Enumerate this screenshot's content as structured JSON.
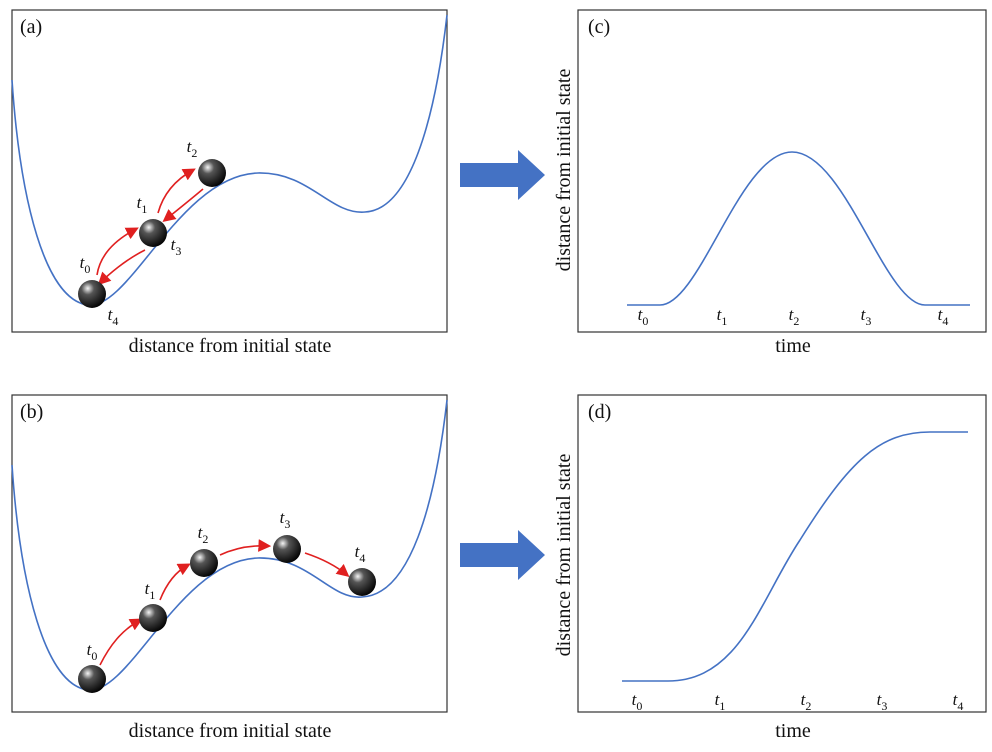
{
  "panels": [
    {
      "label": "(a)",
      "x_label": "distance from initial state",
      "time_labels": [
        {
          "base": "t",
          "sub": "0"
        },
        {
          "base": "t",
          "sub": "1"
        },
        {
          "base": "t",
          "sub": "2"
        },
        {
          "base": "t",
          "sub": "3"
        },
        {
          "base": "t",
          "sub": "4"
        }
      ]
    },
    {
      "label": "(b)",
      "x_label": "distance from initial state",
      "time_labels": [
        {
          "base": "t",
          "sub": "0"
        },
        {
          "base": "t",
          "sub": "1"
        },
        {
          "base": "t",
          "sub": "2"
        },
        {
          "base": "t",
          "sub": "3"
        },
        {
          "base": "t",
          "sub": "4"
        }
      ]
    },
    {
      "label": "(c)",
      "x_label": "time",
      "y_label": "distance from initial state",
      "time_labels": [
        {
          "base": "t",
          "sub": "0"
        },
        {
          "base": "t",
          "sub": "1"
        },
        {
          "base": "t",
          "sub": "2"
        },
        {
          "base": "t",
          "sub": "3"
        },
        {
          "base": "t",
          "sub": "4"
        }
      ]
    },
    {
      "label": "(d)",
      "x_label": "time",
      "y_label": "distance from initial state",
      "time_labels": [
        {
          "base": "t",
          "sub": "0"
        },
        {
          "base": "t",
          "sub": "1"
        },
        {
          "base": "t",
          "sub": "2"
        },
        {
          "base": "t",
          "sub": "3"
        },
        {
          "base": "t",
          "sub": "4"
        }
      ]
    }
  ]
}
